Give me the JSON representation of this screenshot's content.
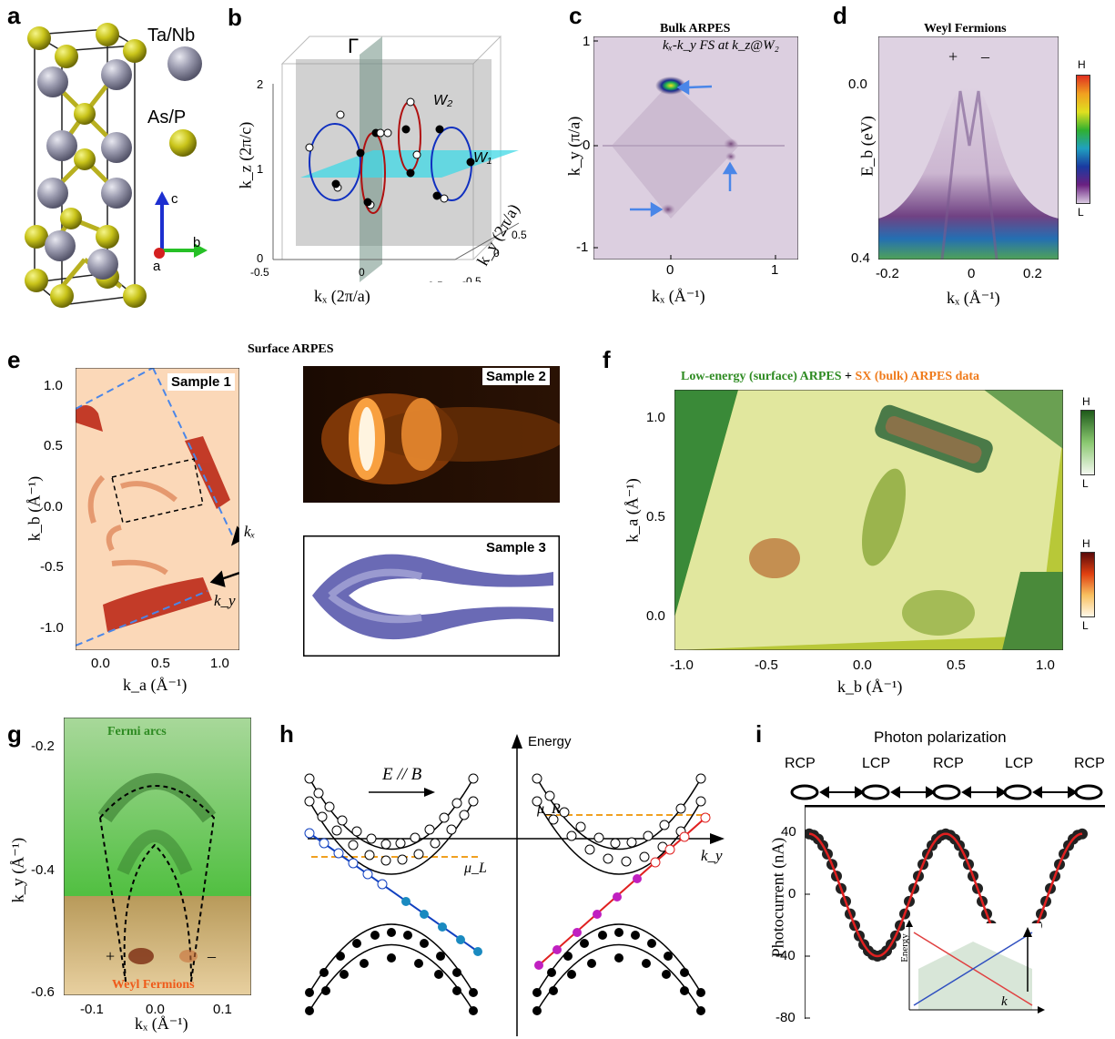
{
  "panels": {
    "a": {
      "label": "a",
      "legend_tanb": "Ta/Nb",
      "legend_asp": "As/P",
      "axis_c": "c",
      "axis_b": "b",
      "axis_a": "a"
    },
    "b": {
      "label": "b",
      "gamma": "Γ",
      "w1": "W₁",
      "w2": "W₂",
      "xlabel": "kₓ (2π/a)",
      "ylabel": "k_z (2π/c)",
      "zlabel": "k_y (2π/a)",
      "yticks": [
        "2",
        "1",
        "0"
      ],
      "xticks": [
        "-0.5",
        "0",
        "0.5"
      ],
      "zticks": [
        "0.5",
        "0",
        "-0.5"
      ]
    },
    "c": {
      "label": "c",
      "title": "Bulk ARPES",
      "annotation": "kₓ-k_y FS at k_z@W₂",
      "xlabel": "kₓ (Å⁻¹)",
      "ylabel": "k_y (π/a)",
      "xticks": [
        "0",
        "1"
      ],
      "yticks": [
        "1",
        "0",
        "-1"
      ]
    },
    "d": {
      "label": "d",
      "title": "Weyl Fermions",
      "plus": "+",
      "minus": "–",
      "xlabel": "kₓ (Å⁻¹)",
      "ylabel": "E_b (eV)",
      "xticks": [
        "-0.2",
        "0",
        "0.2"
      ],
      "yticks": [
        "0.0",
        "0.4"
      ],
      "cbar_high": "H",
      "cbar_low": "L"
    },
    "e": {
      "label": "e",
      "title": "Surface ARPES",
      "sample1": "Sample 1",
      "sample2": "Sample 2",
      "sample3": "Sample 3",
      "xlabel": "k_a (Å⁻¹)",
      "ylabel": "k_b (Å⁻¹)",
      "kx": "kₓ",
      "ky": "k_y",
      "xticks": [
        "0.0",
        "0.5",
        "1.0"
      ],
      "yticks": [
        "1.0",
        "0.5",
        "0.0",
        "-0.5",
        "-1.0"
      ]
    },
    "f": {
      "label": "f",
      "title_green": "Low-energy (surface) ARPES",
      "title_plus": " + ",
      "title_orange": "SX (bulk) ARPES data",
      "xlabel": "k_b (Å⁻¹)",
      "ylabel": "k_a (Å⁻¹)",
      "xticks": [
        "-1.0",
        "-0.5",
        "0.0",
        "0.5",
        "1.0"
      ],
      "yticks": [
        "1.0",
        "0.5",
        "0.0"
      ],
      "cbar_high": "H",
      "cbar_low": "L"
    },
    "g": {
      "label": "g",
      "top_label": "Fermi arcs",
      "bottom_label": "Weyl Fermions",
      "plus": "+",
      "minus": "–",
      "xlabel": "kₓ (Å⁻¹)",
      "ylabel": "k_y (Å⁻¹)",
      "xticks": [
        "-0.1",
        "0.0",
        "0.1"
      ],
      "yticks": [
        "-0.2",
        "-0.4",
        "-0.6"
      ]
    },
    "h": {
      "label": "h",
      "energy": "Energy",
      "field": "E // B",
      "muL": "μ_L",
      "muR": "μ_R",
      "ky": "k_y"
    },
    "i": {
      "label": "i",
      "title": "Photon polarization",
      "pol": [
        "RCP",
        "LCP",
        "RCP",
        "LCP",
        "RCP"
      ],
      "ylabel": "Photocurrent (nA)",
      "yticks": [
        "40",
        "0",
        "-40",
        "-80"
      ],
      "inset_energy": "Energy",
      "inset_k": "k"
    }
  },
  "colors": {
    "blue_arrow": "#4a86e8",
    "orange_dash": "#f0a020",
    "green_title": "#2e8b22",
    "orange_title": "#ef7a1a",
    "red_fit": "#e02020"
  }
}
